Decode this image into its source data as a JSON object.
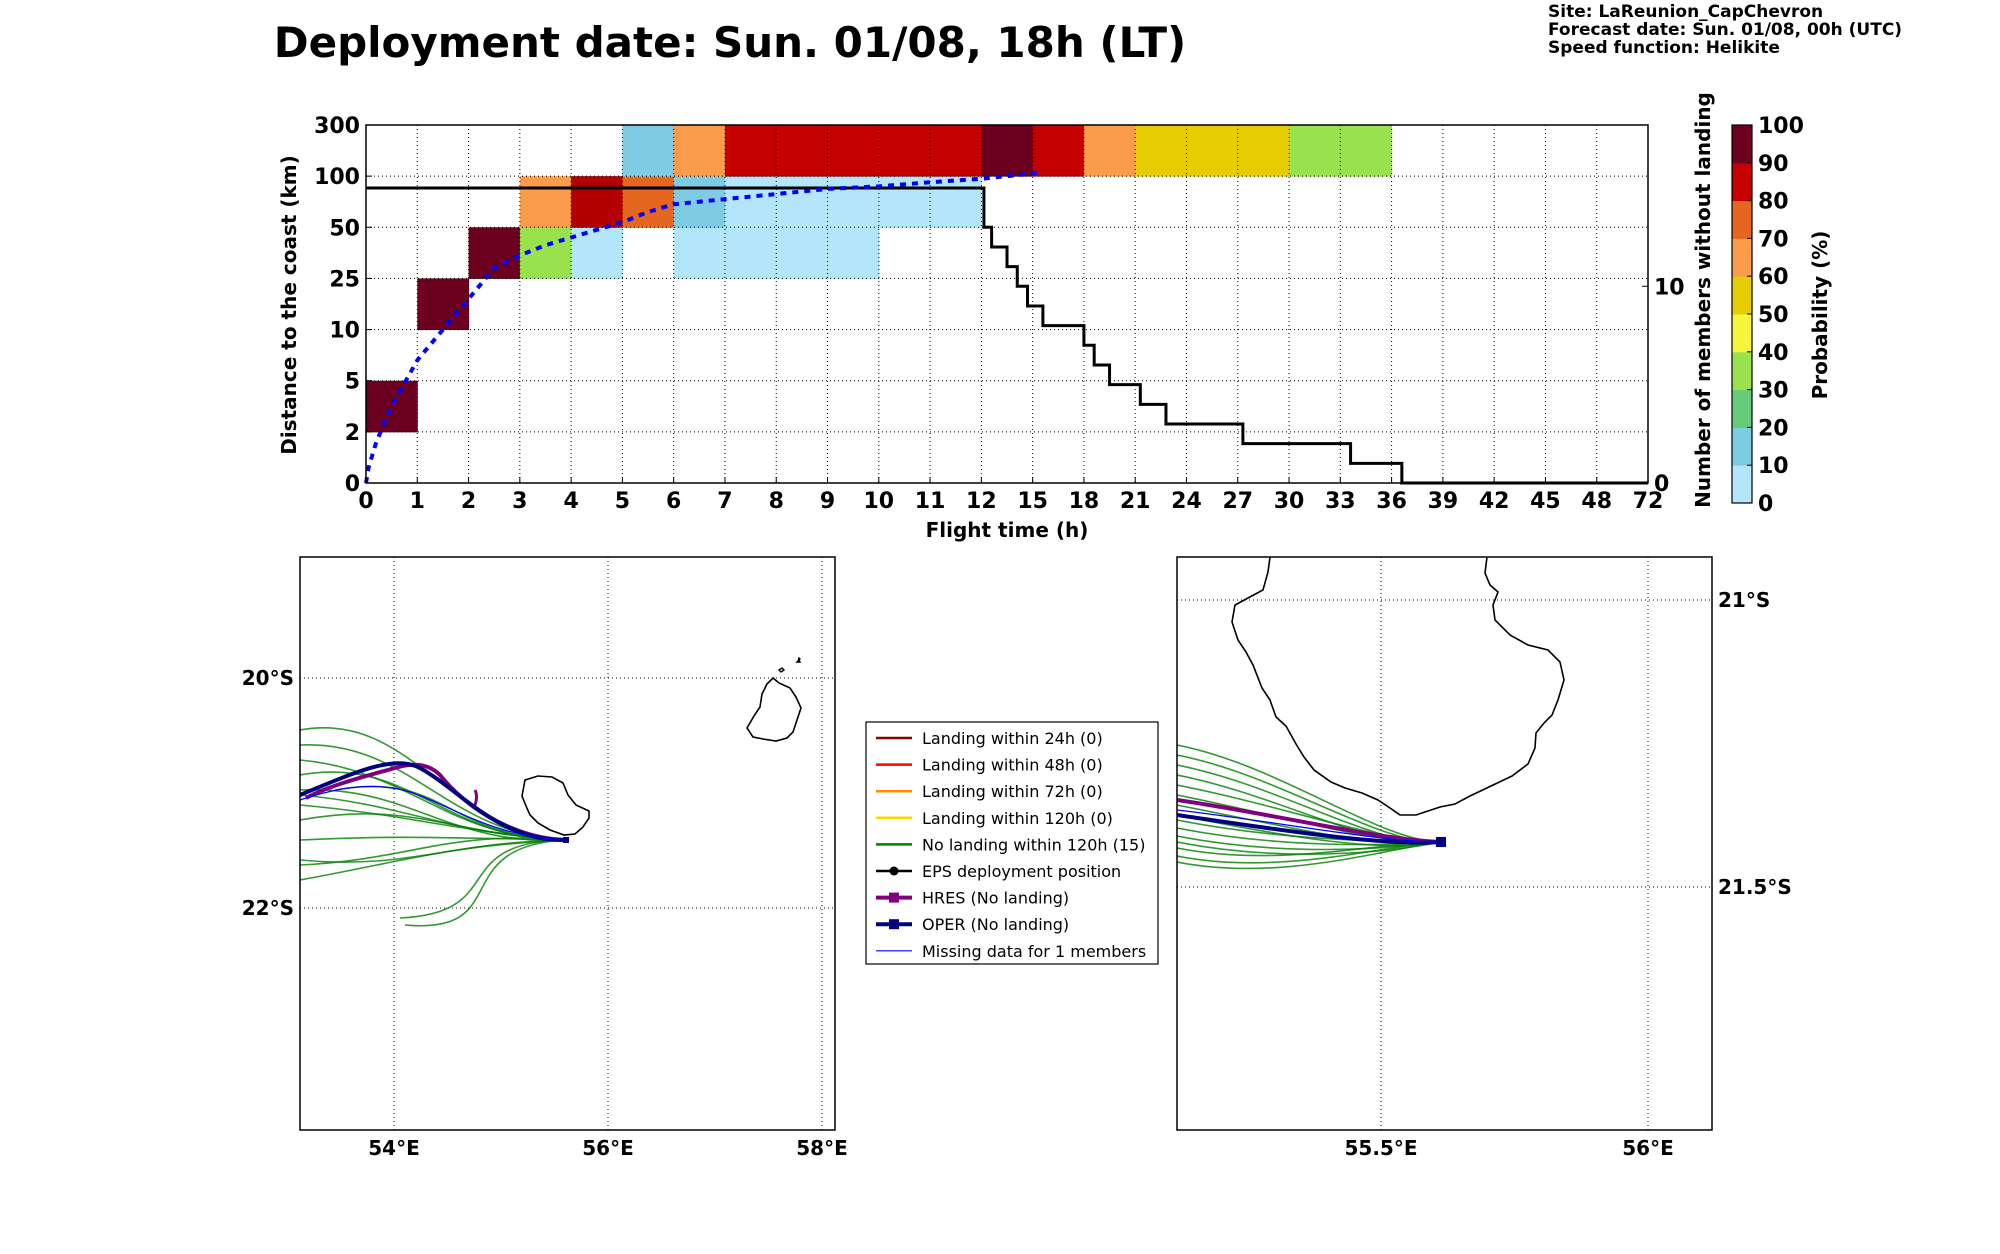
{
  "title": "Deployment date: Sun. 01/08, 18h (LT)",
  "info": {
    "site": "Site: LaReunion_CapChevron",
    "forecast": "Forecast date: Sun. 01/08, 00h (UTC)",
    "speed": "Speed function: Helikite"
  },
  "colors": {
    "p0": "#b3e5fb",
    "p10": "#7ecbe4",
    "p20": "#66cc7a",
    "p30": "#99e14d",
    "p40": "#f5f53d",
    "p50": "#e6cc05",
    "p60": "#fa9c4c",
    "p70": "#e5661f",
    "p80": "#c40000",
    "p90": "#b30000",
    "p100": "#6b0020",
    "members_line": "#000000",
    "dist_curve": "#0000ff",
    "green": "#008000",
    "hres": "#800080",
    "oper": "#000080",
    "missing": "#0000ff"
  },
  "chart_data": [
    {
      "type": "heatmap",
      "xlabel": "Flight time (h)",
      "ylabel": "Distance to the coast (km)",
      "y2label": "Number of members without landing",
      "colorbar_label": "Probability (%)",
      "x_ticks": [
        "0",
        "1",
        "2",
        "3",
        "4",
        "5",
        "6",
        "7",
        "8",
        "9",
        "10",
        "11",
        "12",
        "15",
        "18",
        "21",
        "24",
        "27",
        "30",
        "33",
        "36",
        "39",
        "42",
        "45",
        "48",
        "72"
      ],
      "y_ticks": [
        "0",
        "2",
        "5",
        "10",
        "25",
        "50",
        "100",
        "300"
      ],
      "y2_ticks": [
        "0",
        "10"
      ],
      "colorbar_ticks": [
        "0",
        "10",
        "20",
        "30",
        "40",
        "50",
        "60",
        "70",
        "80",
        "90",
        "100"
      ],
      "cells": [
        {
          "x": 0,
          "y": 1,
          "p": 100
        },
        {
          "x": 1,
          "y": 3,
          "p": 100
        },
        {
          "x": 2,
          "y": 4,
          "p": 100
        },
        {
          "x": 3,
          "y": 4,
          "p": 30
        },
        {
          "x": 3,
          "y": 5,
          "p": 60
        },
        {
          "x": 4,
          "y": 4,
          "p": 0
        },
        {
          "x": 4,
          "y": 5,
          "p": 90
        },
        {
          "x": 5,
          "y": 5,
          "p": 70
        },
        {
          "x": 5,
          "y": 6,
          "p": 10
        },
        {
          "x": 6,
          "y": 4,
          "p": 0
        },
        {
          "x": 6,
          "y": 5,
          "p": 10
        },
        {
          "x": 6,
          "y": 6,
          "p": 60
        },
        {
          "x": 7,
          "y": 4,
          "p": 0
        },
        {
          "x": 7,
          "y": 5,
          "p": 0
        },
        {
          "x": 7,
          "y": 6,
          "p": 80
        },
        {
          "x": 8,
          "y": 4,
          "p": 0
        },
        {
          "x": 8,
          "y": 5,
          "p": 0
        },
        {
          "x": 8,
          "y": 6,
          "p": 80
        },
        {
          "x": 9,
          "y": 4,
          "p": 0
        },
        {
          "x": 9,
          "y": 5,
          "p": 0
        },
        {
          "x": 9,
          "y": 6,
          "p": 80
        },
        {
          "x": 10,
          "y": 5,
          "p": 0
        },
        {
          "x": 10,
          "y": 6,
          "p": 80
        },
        {
          "x": 11,
          "y": 5,
          "p": 0
        },
        {
          "x": 11,
          "y": 6,
          "p": 80
        },
        {
          "x": 12,
          "y": 6,
          "p": 100
        },
        {
          "x": 13,
          "y": 6,
          "p": 80
        },
        {
          "x": 14,
          "y": 6,
          "p": 60
        },
        {
          "x": 15,
          "y": 6,
          "p": 50
        },
        {
          "x": 16,
          "y": 6,
          "p": 50
        },
        {
          "x": 17,
          "y": 6,
          "p": 50
        },
        {
          "x": 18,
          "y": 6,
          "p": 30
        },
        {
          "x": 19,
          "y": 6,
          "p": 30
        }
      ],
      "members_without_landing": [
        [
          0,
          15
        ],
        [
          11.95,
          15
        ],
        [
          12.05,
          13
        ],
        [
          12.2,
          12
        ],
        [
          12.5,
          11
        ],
        [
          12.7,
          10
        ],
        [
          12.9,
          9
        ],
        [
          13.2,
          8
        ],
        [
          14.0,
          7
        ],
        [
          14.2,
          6
        ],
        [
          14.5,
          5
        ],
        [
          15.1,
          4
        ],
        [
          15.6,
          3
        ],
        [
          17.1,
          2
        ],
        [
          19.2,
          1
        ],
        [
          20.2,
          0
        ]
      ],
      "mean_distance": [
        [
          0,
          0.0
        ],
        [
          0.05,
          0.3
        ],
        [
          0.2,
          0.8
        ],
        [
          0.5,
          1.5
        ],
        [
          1,
          2.4
        ],
        [
          1.5,
          3.0
        ],
        [
          2,
          3.6
        ],
        [
          2.5,
          4.2
        ],
        [
          3,
          4.45
        ],
        [
          3.5,
          4.65
        ],
        [
          4,
          4.8
        ],
        [
          4.5,
          4.95
        ],
        [
          5,
          5.1
        ],
        [
          5.5,
          5.3
        ],
        [
          6,
          5.45
        ],
        [
          7,
          5.55
        ],
        [
          8,
          5.65
        ],
        [
          9,
          5.75
        ],
        [
          10,
          5.8
        ],
        [
          11,
          5.88
        ],
        [
          12,
          5.95
        ],
        [
          13,
          6.05
        ],
        [
          13.2,
          6.1
        ]
      ]
    },
    {
      "type": "map",
      "name": "regional",
      "x_ticks": [
        "54°E",
        "56°E",
        "58°E"
      ],
      "y_ticks": [
        "20°S",
        "22°S"
      ]
    },
    {
      "type": "map",
      "name": "zoom",
      "x_ticks": [
        "55.5°E",
        "56°E"
      ],
      "y_ticks": [
        "21°S",
        "21.5°S"
      ]
    }
  ],
  "legend": [
    {
      "label": "Landing within 24h (0)",
      "color": "#8b0000",
      "style": "line"
    },
    {
      "label": "Landing within 48h (0)",
      "color": "#ff0000",
      "style": "line"
    },
    {
      "label": "Landing within 72h (0)",
      "color": "#ff8c00",
      "style": "line"
    },
    {
      "label": "Landing within 120h (0)",
      "color": "#ffd700",
      "style": "line"
    },
    {
      "label": "No landing within 120h (15)",
      "color": "#008000",
      "style": "line"
    },
    {
      "label": "EPS deployment position",
      "color": "#000000",
      "style": "dot"
    },
    {
      "label": "HRES (No landing)",
      "color": "#800080",
      "style": "square"
    },
    {
      "label": "OPER (No landing)",
      "color": "#000080",
      "style": "square"
    },
    {
      "label": "Missing data for 1 members",
      "color": "#0000ff",
      "style": "thin"
    }
  ]
}
